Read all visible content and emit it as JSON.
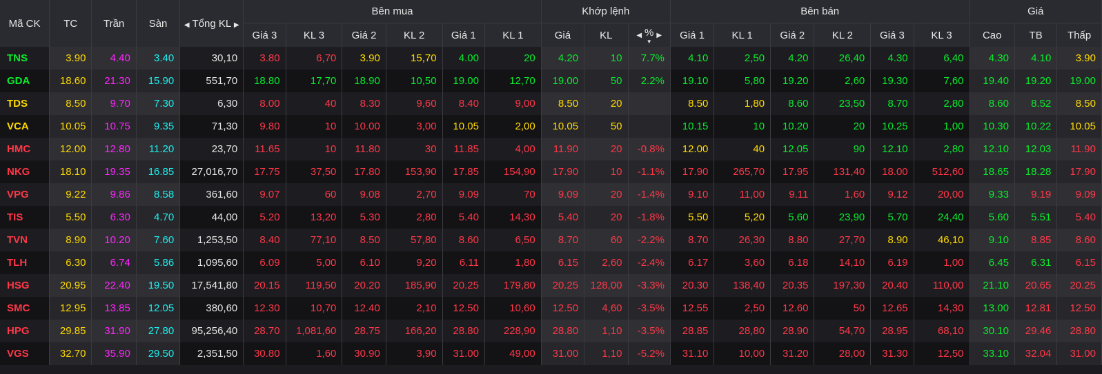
{
  "colors": {
    "up": "#0aeb2c",
    "down": "#ff3747",
    "ref": "#ffd900",
    "ceil": "#ff25ff",
    "floor": "#1eeeee",
    "text": "#e6e6e6"
  },
  "header": {
    "ma_ck": "Mã CK",
    "tc": "TC",
    "tran": "Trần",
    "san": "Sàn",
    "tong_kl": "Tổng KL",
    "ben_mua": "Bên mua",
    "khop_lenh": "Khớp lệnh",
    "ben_ban": "Bên bán",
    "gia": "Giá",
    "buy_cols": [
      "Giá 3",
      "KL 3",
      "Giá 2",
      "KL 2",
      "Giá 1",
      "KL 1"
    ],
    "match_cols": [
      "Giá",
      "KL",
      "%"
    ],
    "sell_cols": [
      "Giá 1",
      "KL 1",
      "Giá 2",
      "KL 2",
      "Giá 3",
      "KL 3"
    ],
    "price_cols": [
      "Cao",
      "TB",
      "Thấp"
    ]
  },
  "rows": [
    {
      "sym": "TNS",
      "tc": "3.90",
      "tran": "4.40",
      "san": "3.40",
      "tkl": "30,10",
      "buy": [
        [
          "3.80",
          "down"
        ],
        [
          "6,70",
          "down"
        ],
        [
          "3.90",
          "ref"
        ],
        [
          "15,70",
          "ref"
        ],
        [
          "4.00",
          "up"
        ],
        [
          "20",
          "up"
        ]
      ],
      "match": [
        [
          "4.20",
          "up"
        ],
        [
          "10",
          "up"
        ],
        [
          "7.7%",
          "up"
        ]
      ],
      "sell": [
        [
          "4.10",
          "up"
        ],
        [
          "2,50",
          "up"
        ],
        [
          "4.20",
          "up"
        ],
        [
          "26,40",
          "up"
        ],
        [
          "4.30",
          "up"
        ],
        [
          "6,40",
          "up"
        ]
      ],
      "price": [
        [
          "4.30",
          "up"
        ],
        [
          "4.10",
          "up"
        ],
        [
          "3.90",
          "ref"
        ]
      ],
      "symc": "up"
    },
    {
      "sym": "GDA",
      "tc": "18.60",
      "tran": "21.30",
      "san": "15.90",
      "tkl": "551,70",
      "buy": [
        [
          "18.80",
          "up"
        ],
        [
          "17,70",
          "up"
        ],
        [
          "18.90",
          "up"
        ],
        [
          "10,50",
          "up"
        ],
        [
          "19.00",
          "up"
        ],
        [
          "12,70",
          "up"
        ]
      ],
      "match": [
        [
          "19.00",
          "up"
        ],
        [
          "50",
          "up"
        ],
        [
          "2.2%",
          "up"
        ]
      ],
      "sell": [
        [
          "19.10",
          "up"
        ],
        [
          "5,80",
          "up"
        ],
        [
          "19.20",
          "up"
        ],
        [
          "2,60",
          "up"
        ],
        [
          "19.30",
          "up"
        ],
        [
          "7,60",
          "up"
        ]
      ],
      "price": [
        [
          "19.40",
          "up"
        ],
        [
          "19.20",
          "up"
        ],
        [
          "19.00",
          "up"
        ]
      ],
      "symc": "up"
    },
    {
      "sym": "TDS",
      "tc": "8.50",
      "tran": "9.70",
      "san": "7.30",
      "tkl": "6,30",
      "buy": [
        [
          "8.00",
          "down"
        ],
        [
          "40",
          "down"
        ],
        [
          "8.30",
          "down"
        ],
        [
          "9,60",
          "down"
        ],
        [
          "8.40",
          "down"
        ],
        [
          "9,00",
          "down"
        ]
      ],
      "match": [
        [
          "8.50",
          "ref"
        ],
        [
          "20",
          "ref"
        ],
        [
          "",
          "ref"
        ]
      ],
      "sell": [
        [
          "8.50",
          "ref"
        ],
        [
          "1,80",
          "ref"
        ],
        [
          "8.60",
          "up"
        ],
        [
          "23,50",
          "up"
        ],
        [
          "8.70",
          "up"
        ],
        [
          "2,80",
          "up"
        ]
      ],
      "price": [
        [
          "8.60",
          "up"
        ],
        [
          "8.52",
          "up"
        ],
        [
          "8.50",
          "ref"
        ]
      ],
      "symc": "ref"
    },
    {
      "sym": "VCA",
      "tc": "10.05",
      "tran": "10.75",
      "san": "9.35",
      "tkl": "71,30",
      "buy": [
        [
          "9.80",
          "down"
        ],
        [
          "10",
          "down"
        ],
        [
          "10.00",
          "down"
        ],
        [
          "3,00",
          "down"
        ],
        [
          "10.05",
          "ref"
        ],
        [
          "2,00",
          "ref"
        ]
      ],
      "match": [
        [
          "10.05",
          "ref"
        ],
        [
          "50",
          "ref"
        ],
        [
          "",
          "ref"
        ]
      ],
      "sell": [
        [
          "10.15",
          "up"
        ],
        [
          "10",
          "up"
        ],
        [
          "10.20",
          "up"
        ],
        [
          "20",
          "up"
        ],
        [
          "10.25",
          "up"
        ],
        [
          "1,00",
          "up"
        ]
      ],
      "price": [
        [
          "10.30",
          "up"
        ],
        [
          "10.22",
          "up"
        ],
        [
          "10.05",
          "ref"
        ]
      ],
      "symc": "ref"
    },
    {
      "sym": "HMC",
      "tc": "12.00",
      "tran": "12.80",
      "san": "11.20",
      "tkl": "23,70",
      "buy": [
        [
          "11.65",
          "down"
        ],
        [
          "10",
          "down"
        ],
        [
          "11.80",
          "down"
        ],
        [
          "30",
          "down"
        ],
        [
          "11.85",
          "down"
        ],
        [
          "4,00",
          "down"
        ]
      ],
      "match": [
        [
          "11.90",
          "down"
        ],
        [
          "20",
          "down"
        ],
        [
          "-0.8%",
          "down"
        ]
      ],
      "sell": [
        [
          "12.00",
          "ref"
        ],
        [
          "40",
          "ref"
        ],
        [
          "12.05",
          "up"
        ],
        [
          "90",
          "up"
        ],
        [
          "12.10",
          "up"
        ],
        [
          "2,80",
          "up"
        ]
      ],
      "price": [
        [
          "12.10",
          "up"
        ],
        [
          "12.03",
          "up"
        ],
        [
          "11.90",
          "down"
        ]
      ],
      "symc": "down"
    },
    {
      "sym": "NKG",
      "tc": "18.10",
      "tran": "19.35",
      "san": "16.85",
      "tkl": "27,016,70",
      "buy": [
        [
          "17.75",
          "down"
        ],
        [
          "37,50",
          "down"
        ],
        [
          "17.80",
          "down"
        ],
        [
          "153,90",
          "down"
        ],
        [
          "17.85",
          "down"
        ],
        [
          "154,90",
          "down"
        ]
      ],
      "match": [
        [
          "17.90",
          "down"
        ],
        [
          "10",
          "down"
        ],
        [
          "-1.1%",
          "down"
        ]
      ],
      "sell": [
        [
          "17.90",
          "down"
        ],
        [
          "265,70",
          "down"
        ],
        [
          "17.95",
          "down"
        ],
        [
          "131,40",
          "down"
        ],
        [
          "18.00",
          "down"
        ],
        [
          "512,60",
          "down"
        ]
      ],
      "price": [
        [
          "18.65",
          "up"
        ],
        [
          "18.28",
          "up"
        ],
        [
          "17.90",
          "down"
        ]
      ],
      "symc": "down"
    },
    {
      "sym": "VPG",
      "tc": "9.22",
      "tran": "9.86",
      "san": "8.58",
      "tkl": "361,60",
      "buy": [
        [
          "9.07",
          "down"
        ],
        [
          "60",
          "down"
        ],
        [
          "9.08",
          "down"
        ],
        [
          "2,70",
          "down"
        ],
        [
          "9.09",
          "down"
        ],
        [
          "70",
          "down"
        ]
      ],
      "match": [
        [
          "9.09",
          "down"
        ],
        [
          "20",
          "down"
        ],
        [
          "-1.4%",
          "down"
        ]
      ],
      "sell": [
        [
          "9.10",
          "down"
        ],
        [
          "11,00",
          "down"
        ],
        [
          "9.11",
          "down"
        ],
        [
          "1,60",
          "down"
        ],
        [
          "9.12",
          "down"
        ],
        [
          "20,00",
          "down"
        ]
      ],
      "price": [
        [
          "9.33",
          "up"
        ],
        [
          "9.19",
          "down"
        ],
        [
          "9.09",
          "down"
        ]
      ],
      "symc": "down"
    },
    {
      "sym": "TIS",
      "tc": "5.50",
      "tran": "6.30",
      "san": "4.70",
      "tkl": "44,00",
      "buy": [
        [
          "5.20",
          "down"
        ],
        [
          "13,20",
          "down"
        ],
        [
          "5.30",
          "down"
        ],
        [
          "2,80",
          "down"
        ],
        [
          "5.40",
          "down"
        ],
        [
          "14,30",
          "down"
        ]
      ],
      "match": [
        [
          "5.40",
          "down"
        ],
        [
          "20",
          "down"
        ],
        [
          "-1.8%",
          "down"
        ]
      ],
      "sell": [
        [
          "5.50",
          "ref"
        ],
        [
          "5,20",
          "ref"
        ],
        [
          "5.60",
          "up"
        ],
        [
          "23,90",
          "up"
        ],
        [
          "5.70",
          "up"
        ],
        [
          "24,40",
          "up"
        ]
      ],
      "price": [
        [
          "5.60",
          "up"
        ],
        [
          "5.51",
          "up"
        ],
        [
          "5.40",
          "down"
        ]
      ],
      "symc": "down"
    },
    {
      "sym": "TVN",
      "tc": "8.90",
      "tran": "10.20",
      "san": "7.60",
      "tkl": "1,253,50",
      "buy": [
        [
          "8.40",
          "down"
        ],
        [
          "77,10",
          "down"
        ],
        [
          "8.50",
          "down"
        ],
        [
          "57,80",
          "down"
        ],
        [
          "8.60",
          "down"
        ],
        [
          "6,50",
          "down"
        ]
      ],
      "match": [
        [
          "8.70",
          "down"
        ],
        [
          "60",
          "down"
        ],
        [
          "-2.2%",
          "down"
        ]
      ],
      "sell": [
        [
          "8.70",
          "down"
        ],
        [
          "26,30",
          "down"
        ],
        [
          "8.80",
          "down"
        ],
        [
          "27,70",
          "down"
        ],
        [
          "8.90",
          "ref"
        ],
        [
          "46,10",
          "ref"
        ]
      ],
      "price": [
        [
          "9.10",
          "up"
        ],
        [
          "8.85",
          "down"
        ],
        [
          "8.60",
          "down"
        ]
      ],
      "symc": "down"
    },
    {
      "sym": "TLH",
      "tc": "6.30",
      "tran": "6.74",
      "san": "5.86",
      "tkl": "1,095,60",
      "buy": [
        [
          "6.09",
          "down"
        ],
        [
          "5,00",
          "down"
        ],
        [
          "6.10",
          "down"
        ],
        [
          "9,20",
          "down"
        ],
        [
          "6.11",
          "down"
        ],
        [
          "1,80",
          "down"
        ]
      ],
      "match": [
        [
          "6.15",
          "down"
        ],
        [
          "2,60",
          "down"
        ],
        [
          "-2.4%",
          "down"
        ]
      ],
      "sell": [
        [
          "6.17",
          "down"
        ],
        [
          "3,60",
          "down"
        ],
        [
          "6.18",
          "down"
        ],
        [
          "14,10",
          "down"
        ],
        [
          "6.19",
          "down"
        ],
        [
          "1,00",
          "down"
        ]
      ],
      "price": [
        [
          "6.45",
          "up"
        ],
        [
          "6.31",
          "up"
        ],
        [
          "6.15",
          "down"
        ]
      ],
      "symc": "down"
    },
    {
      "sym": "HSG",
      "tc": "20.95",
      "tran": "22.40",
      "san": "19.50",
      "tkl": "17,541,80",
      "buy": [
        [
          "20.15",
          "down"
        ],
        [
          "119,50",
          "down"
        ],
        [
          "20.20",
          "down"
        ],
        [
          "185,90",
          "down"
        ],
        [
          "20.25",
          "down"
        ],
        [
          "179,80",
          "down"
        ]
      ],
      "match": [
        [
          "20.25",
          "down"
        ],
        [
          "128,00",
          "down"
        ],
        [
          "-3.3%",
          "down"
        ]
      ],
      "sell": [
        [
          "20.30",
          "down"
        ],
        [
          "138,40",
          "down"
        ],
        [
          "20.35",
          "down"
        ],
        [
          "197,30",
          "down"
        ],
        [
          "20.40",
          "down"
        ],
        [
          "110,00",
          "down"
        ]
      ],
      "price": [
        [
          "21.10",
          "up"
        ],
        [
          "20.65",
          "down"
        ],
        [
          "20.25",
          "down"
        ]
      ],
      "symc": "down"
    },
    {
      "sym": "SMC",
      "tc": "12.95",
      "tran": "13.85",
      "san": "12.05",
      "tkl": "380,60",
      "buy": [
        [
          "12.30",
          "down"
        ],
        [
          "10,70",
          "down"
        ],
        [
          "12.40",
          "down"
        ],
        [
          "2,10",
          "down"
        ],
        [
          "12.50",
          "down"
        ],
        [
          "10,60",
          "down"
        ]
      ],
      "match": [
        [
          "12.50",
          "down"
        ],
        [
          "4,60",
          "down"
        ],
        [
          "-3.5%",
          "down"
        ]
      ],
      "sell": [
        [
          "12.55",
          "down"
        ],
        [
          "2,50",
          "down"
        ],
        [
          "12.60",
          "down"
        ],
        [
          "50",
          "down"
        ],
        [
          "12.65",
          "down"
        ],
        [
          "14,30",
          "down"
        ]
      ],
      "price": [
        [
          "13.00",
          "up"
        ],
        [
          "12.81",
          "down"
        ],
        [
          "12.50",
          "down"
        ]
      ],
      "symc": "down"
    },
    {
      "sym": "HPG",
      "tc": "29.85",
      "tran": "31.90",
      "san": "27.80",
      "tkl": "95,256,40",
      "buy": [
        [
          "28.70",
          "down"
        ],
        [
          "1,081,60",
          "down"
        ],
        [
          "28.75",
          "down"
        ],
        [
          "166,20",
          "down"
        ],
        [
          "28.80",
          "down"
        ],
        [
          "228,90",
          "down"
        ]
      ],
      "match": [
        [
          "28.80",
          "down"
        ],
        [
          "1,10",
          "down"
        ],
        [
          "-3.5%",
          "down"
        ]
      ],
      "sell": [
        [
          "28.85",
          "down"
        ],
        [
          "28,80",
          "down"
        ],
        [
          "28.90",
          "down"
        ],
        [
          "54,70",
          "down"
        ],
        [
          "28.95",
          "down"
        ],
        [
          "68,10",
          "down"
        ]
      ],
      "price": [
        [
          "30.10",
          "up"
        ],
        [
          "29.46",
          "down"
        ],
        [
          "28.80",
          "down"
        ]
      ],
      "symc": "down"
    },
    {
      "sym": "VGS",
      "tc": "32.70",
      "tran": "35.90",
      "san": "29.50",
      "tkl": "2,351,50",
      "buy": [
        [
          "30.80",
          "down"
        ],
        [
          "1,60",
          "down"
        ],
        [
          "30.90",
          "down"
        ],
        [
          "3,90",
          "down"
        ],
        [
          "31.00",
          "down"
        ],
        [
          "49,00",
          "down"
        ]
      ],
      "match": [
        [
          "31.00",
          "down"
        ],
        [
          "1,10",
          "down"
        ],
        [
          "-5.2%",
          "down"
        ]
      ],
      "sell": [
        [
          "31.10",
          "down"
        ],
        [
          "10,00",
          "down"
        ],
        [
          "31.20",
          "down"
        ],
        [
          "28,00",
          "down"
        ],
        [
          "31.30",
          "down"
        ],
        [
          "12,50",
          "down"
        ]
      ],
      "price": [
        [
          "33.10",
          "up"
        ],
        [
          "32.04",
          "down"
        ],
        [
          "31.00",
          "down"
        ]
      ],
      "symc": "down"
    }
  ]
}
